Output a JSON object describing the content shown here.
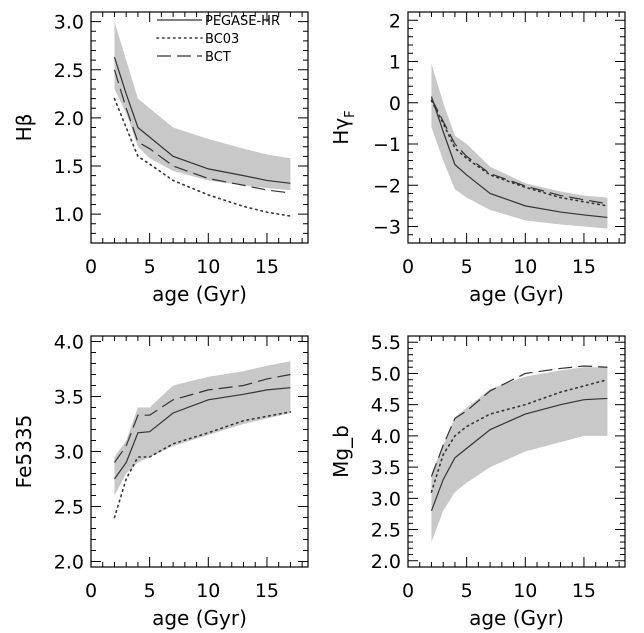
{
  "chart_data": [
    {
      "type": "line",
      "panel": "top-left",
      "xlabel": "age (Gyr)",
      "ylabel_main": "Hβ",
      "ylabel_sub": "",
      "xlim": [
        0,
        18.5
      ],
      "ylim": [
        0.7,
        3.1
      ],
      "xticks": [
        0,
        5,
        10,
        15
      ],
      "xtick_labels": [
        "0",
        "5",
        "10",
        "15"
      ],
      "yticks": [
        1.0,
        1.5,
        2.0,
        2.5,
        3.0
      ],
      "ytick_labels": [
        "1.0",
        "1.5",
        "2.0",
        "2.5",
        "3.0"
      ],
      "x": [
        2,
        3,
        4,
        5,
        7,
        10,
        13,
        15,
        17
      ],
      "band": {
        "name": "PEGASE-HR range",
        "color": "#c8c8c8",
        "lower": [
          2.3,
          2.05,
          1.7,
          1.58,
          1.45,
          1.35,
          1.3,
          1.27,
          1.25
        ],
        "upper": [
          3.0,
          2.6,
          2.2,
          2.1,
          1.9,
          1.78,
          1.68,
          1.62,
          1.58
        ]
      },
      "series": [
        {
          "name": "PEGASE-HR",
          "style": "solid",
          "values": [
            2.63,
            2.25,
            1.9,
            1.8,
            1.6,
            1.47,
            1.4,
            1.35,
            1.32
          ]
        },
        {
          "name": "BC03",
          "style": "dotted",
          "values": [
            2.2,
            1.9,
            1.6,
            1.52,
            1.35,
            1.2,
            1.08,
            1.02,
            0.98
          ]
        },
        {
          "name": "BCT",
          "style": "dashed",
          "values": [
            2.5,
            2.1,
            1.75,
            1.68,
            1.5,
            1.37,
            1.3,
            1.25,
            1.22
          ]
        }
      ],
      "legend": {
        "placement": "top-right",
        "entries": [
          "PEGASE-HR",
          "BC03",
          "BCT"
        ]
      }
    },
    {
      "type": "line",
      "panel": "top-right",
      "xlabel": "age (Gyr)",
      "ylabel_main": "Hγ",
      "ylabel_sub": "F",
      "xlim": [
        0,
        18.5
      ],
      "ylim": [
        -3.4,
        2.2
      ],
      "xticks": [
        0,
        5,
        10,
        15
      ],
      "xtick_labels": [
        "0",
        "5",
        "10",
        "15"
      ],
      "yticks": [
        -3,
        -2,
        -1,
        0,
        1,
        2
      ],
      "ytick_labels": [
        "−3",
        "−2",
        "−1",
        "0",
        "1",
        "2"
      ],
      "x": [
        2,
        3,
        4,
        5,
        7,
        10,
        13,
        15,
        17
      ],
      "band": {
        "name": "PEGASE-HR range",
        "color": "#c8c8c8",
        "lower": [
          -0.6,
          -1.4,
          -2.1,
          -2.3,
          -2.6,
          -2.85,
          -2.95,
          -3.0,
          -3.05
        ],
        "upper": [
          0.95,
          0.0,
          -0.8,
          -1.0,
          -1.55,
          -1.95,
          -2.15,
          -2.25,
          -2.3
        ]
      },
      "series": [
        {
          "name": "PEGASE-HR",
          "style": "solid",
          "values": [
            0.15,
            -0.7,
            -1.5,
            -1.75,
            -2.2,
            -2.5,
            -2.65,
            -2.72,
            -2.78
          ]
        },
        {
          "name": "BC03",
          "style": "dotted",
          "values": [
            0.05,
            -0.5,
            -1.1,
            -1.35,
            -1.75,
            -2.05,
            -2.3,
            -2.4,
            -2.5
          ]
        },
        {
          "name": "BCT",
          "style": "dashed",
          "values": [
            0.1,
            -0.45,
            -1.0,
            -1.3,
            -1.72,
            -2.02,
            -2.25,
            -2.35,
            -2.45
          ]
        }
      ]
    },
    {
      "type": "line",
      "panel": "bottom-left",
      "xlabel": "age (Gyr)",
      "ylabel_main": "Fe5335",
      "ylabel_sub": "",
      "xlim": [
        0,
        18.5
      ],
      "ylim": [
        1.95,
        4.05
      ],
      "xticks": [
        0,
        5,
        10,
        15
      ],
      "xtick_labels": [
        "0",
        "5",
        "10",
        "15"
      ],
      "yticks": [
        2.0,
        2.5,
        3.0,
        3.5,
        4.0
      ],
      "ytick_labels": [
        "2.0",
        "2.5",
        "3.0",
        "3.5",
        "4.0"
      ],
      "x": [
        2,
        3,
        4,
        5,
        7,
        10,
        13,
        15,
        17
      ],
      "band": {
        "name": "PEGASE-HR range",
        "color": "#c8c8c8",
        "lower": [
          2.6,
          2.8,
          2.9,
          2.95,
          3.05,
          3.15,
          3.25,
          3.3,
          3.35
        ],
        "upper": [
          2.95,
          3.1,
          3.4,
          3.4,
          3.6,
          3.68,
          3.73,
          3.78,
          3.82
        ]
      },
      "series": [
        {
          "name": "PEGASE-HR",
          "style": "solid",
          "values": [
            2.75,
            2.9,
            3.17,
            3.18,
            3.35,
            3.47,
            3.52,
            3.56,
            3.58
          ]
        },
        {
          "name": "BC03",
          "style": "dotted",
          "values": [
            2.4,
            2.75,
            2.95,
            2.95,
            3.07,
            3.17,
            3.28,
            3.32,
            3.36
          ]
        },
        {
          "name": "BCT",
          "style": "dashed",
          "values": [
            2.9,
            3.05,
            3.33,
            3.33,
            3.47,
            3.56,
            3.6,
            3.66,
            3.7
          ]
        }
      ]
    },
    {
      "type": "line",
      "panel": "bottom-right",
      "xlabel": "age (Gyr)",
      "ylabel_main": "Mg_b",
      "ylabel_sub": "",
      "xlim": [
        0,
        18.5
      ],
      "ylim": [
        1.9,
        5.6
      ],
      "xticks": [
        0,
        5,
        10,
        15
      ],
      "xtick_labels": [
        "0",
        "5",
        "10",
        "15"
      ],
      "yticks": [
        2.0,
        2.5,
        3.0,
        3.5,
        4.0,
        4.5,
        5.0,
        5.5
      ],
      "ytick_labels": [
        "2.0",
        "2.5",
        "3.0",
        "3.5",
        "4.0",
        "4.5",
        "5.0",
        "5.5"
      ],
      "x": [
        2,
        3,
        4,
        5,
        7,
        10,
        13,
        15,
        17
      ],
      "band": {
        "name": "PEGASE-HR range",
        "color": "#c8c8c8",
        "lower": [
          2.3,
          2.8,
          3.1,
          3.25,
          3.5,
          3.75,
          3.9,
          4.0,
          4.0
        ],
        "upper": [
          3.4,
          3.85,
          4.3,
          4.45,
          4.75,
          4.95,
          5.05,
          5.1,
          5.1
        ]
      },
      "series": [
        {
          "name": "PEGASE-HR",
          "style": "solid",
          "values": [
            2.8,
            3.3,
            3.65,
            3.8,
            4.1,
            4.35,
            4.5,
            4.58,
            4.6
          ]
        },
        {
          "name": "BC03",
          "style": "dotted",
          "values": [
            3.1,
            3.7,
            4.0,
            4.15,
            4.35,
            4.5,
            4.7,
            4.8,
            4.9
          ]
        },
        {
          "name": "BCT",
          "style": "dashed",
          "values": [
            3.35,
            3.85,
            4.28,
            4.4,
            4.72,
            5.0,
            5.08,
            5.12,
            5.1
          ]
        }
      ]
    }
  ]
}
